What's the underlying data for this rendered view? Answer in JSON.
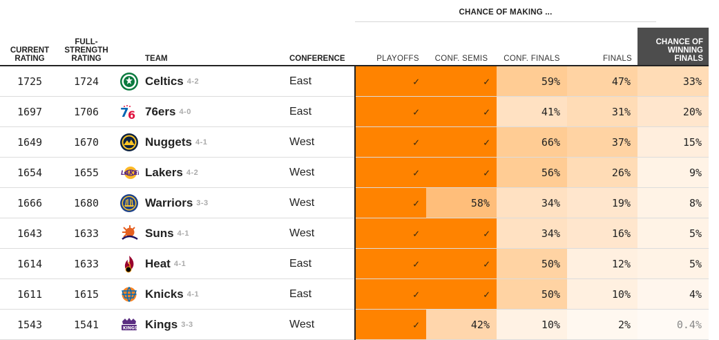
{
  "header": {
    "supergroup": "CHANCE OF MAKING ...",
    "current_rating": [
      "CURRENT",
      "RATING"
    ],
    "full_strength_rating": [
      "FULL-",
      "STRENGTH",
      "RATING"
    ],
    "team": "TEAM",
    "conference": "CONFERENCE",
    "playoffs": "PLAYOFFS",
    "conf_semis": "CONF. SEMIS",
    "conf_finals": "CONF. FINALS",
    "finals": "FINALS",
    "winning_finals": [
      "CHANCE OF",
      "WINNING",
      "FINALS"
    ]
  },
  "colors": {
    "check": "#ff8300",
    "levels": [
      "#fff7ee",
      "#ffeedd",
      "#ffe0c0",
      "#ffcc94",
      "#ffb870",
      "#ff8300"
    ]
  },
  "rows": [
    {
      "current": "1725",
      "full": "1724",
      "team": "Celtics",
      "record": "4-2",
      "logo": "celtics-logo",
      "conference": "East",
      "playoffs": {
        "text": "✓",
        "v": 1
      },
      "conf_semis": {
        "text": "✓",
        "v": 1
      },
      "conf_finals": {
        "text": "59%",
        "v": 0.59
      },
      "finals": {
        "text": "47%",
        "v": 0.47
      },
      "win": {
        "text": "33%",
        "v": 0.33
      }
    },
    {
      "current": "1697",
      "full": "1706",
      "team": "76ers",
      "record": "4-0",
      "logo": "76ers-logo",
      "conference": "East",
      "playoffs": {
        "text": "✓",
        "v": 1
      },
      "conf_semis": {
        "text": "✓",
        "v": 1
      },
      "conf_finals": {
        "text": "41%",
        "v": 0.41
      },
      "finals": {
        "text": "31%",
        "v": 0.31
      },
      "win": {
        "text": "20%",
        "v": 0.2
      }
    },
    {
      "current": "1649",
      "full": "1670",
      "team": "Nuggets",
      "record": "4-1",
      "logo": "nuggets-logo",
      "conference": "West",
      "playoffs": {
        "text": "✓",
        "v": 1
      },
      "conf_semis": {
        "text": "✓",
        "v": 1
      },
      "conf_finals": {
        "text": "66%",
        "v": 0.66
      },
      "finals": {
        "text": "37%",
        "v": 0.37
      },
      "win": {
        "text": "15%",
        "v": 0.15
      }
    },
    {
      "current": "1654",
      "full": "1655",
      "team": "Lakers",
      "record": "4-2",
      "logo": "lakers-logo",
      "conference": "West",
      "playoffs": {
        "text": "✓",
        "v": 1
      },
      "conf_semis": {
        "text": "✓",
        "v": 1
      },
      "conf_finals": {
        "text": "56%",
        "v": 0.56
      },
      "finals": {
        "text": "26%",
        "v": 0.26
      },
      "win": {
        "text": "9%",
        "v": 0.09
      }
    },
    {
      "current": "1666",
      "full": "1680",
      "team": "Warriors",
      "record": "3-3",
      "logo": "warriors-logo",
      "conference": "West",
      "playoffs": {
        "text": "✓",
        "v": 1
      },
      "conf_semis": {
        "text": "58%",
        "v": 0.58
      },
      "conf_finals": {
        "text": "34%",
        "v": 0.34
      },
      "finals": {
        "text": "19%",
        "v": 0.19
      },
      "win": {
        "text": "8%",
        "v": 0.08
      }
    },
    {
      "current": "1643",
      "full": "1633",
      "team": "Suns",
      "record": "4-1",
      "logo": "suns-logo",
      "conference": "West",
      "playoffs": {
        "text": "✓",
        "v": 1
      },
      "conf_semis": {
        "text": "✓",
        "v": 1
      },
      "conf_finals": {
        "text": "34%",
        "v": 0.34
      },
      "finals": {
        "text": "16%",
        "v": 0.16
      },
      "win": {
        "text": "5%",
        "v": 0.05
      }
    },
    {
      "current": "1614",
      "full": "1633",
      "team": "Heat",
      "record": "4-1",
      "logo": "heat-logo",
      "conference": "East",
      "playoffs": {
        "text": "✓",
        "v": 1
      },
      "conf_semis": {
        "text": "✓",
        "v": 1
      },
      "conf_finals": {
        "text": "50%",
        "v": 0.5
      },
      "finals": {
        "text": "12%",
        "v": 0.12
      },
      "win": {
        "text": "5%",
        "v": 0.05
      }
    },
    {
      "current": "1611",
      "full": "1615",
      "team": "Knicks",
      "record": "4-1",
      "logo": "knicks-logo",
      "conference": "East",
      "playoffs": {
        "text": "✓",
        "v": 1
      },
      "conf_semis": {
        "text": "✓",
        "v": 1
      },
      "conf_finals": {
        "text": "50%",
        "v": 0.5
      },
      "finals": {
        "text": "10%",
        "v": 0.1
      },
      "win": {
        "text": "4%",
        "v": 0.04
      }
    },
    {
      "current": "1543",
      "full": "1541",
      "team": "Kings",
      "record": "3-3",
      "logo": "kings-logo",
      "conference": "West",
      "playoffs": {
        "text": "✓",
        "v": 1
      },
      "conf_semis": {
        "text": "42%",
        "v": 0.42
      },
      "conf_finals": {
        "text": "10%",
        "v": 0.1
      },
      "finals": {
        "text": "2%",
        "v": 0.02
      },
      "win": {
        "text": "0.4%",
        "v": 0.004,
        "muted": true
      }
    }
  ]
}
